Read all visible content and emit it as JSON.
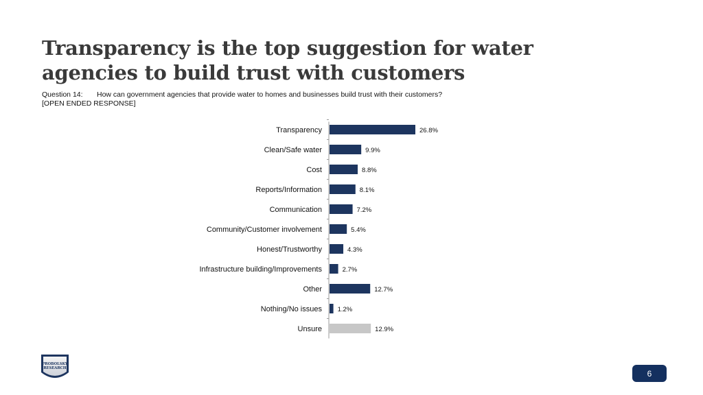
{
  "title": "Transparency is the top suggestion for water agencies to build trust with customers",
  "question": {
    "label": "Question 14:",
    "text": "How can government agencies that provide water to homes and businesses build trust with their customers?",
    "note": "[OPEN ENDED RESPONSE]"
  },
  "colors": {
    "primary_bar": "#1d355f",
    "unsure_bar": "#c7c7c7",
    "badge": "#14305f"
  },
  "logo": {
    "line1": "PROBOLSKY",
    "line2": "RESEARCH"
  },
  "page_number": "6",
  "chart_data": {
    "type": "bar",
    "orientation": "horizontal",
    "categories": [
      "Transparency",
      "Clean/Safe water",
      "Cost",
      "Reports/Information",
      "Communication",
      "Community/Customer involvement",
      "Honest/Trustworthy",
      "Infrastructure building/Improvements",
      "Other",
      "Nothing/No issues",
      "Unsure"
    ],
    "values": [
      26.8,
      9.9,
      8.8,
      8.1,
      7.2,
      5.4,
      4.3,
      2.7,
      12.7,
      1.2,
      12.9
    ],
    "value_labels": [
      "26.8%",
      "9.9%",
      "8.8%",
      "8.1%",
      "7.2%",
      "5.4%",
      "4.3%",
      "2.7%",
      "12.7%",
      "1.2%",
      "12.9%"
    ],
    "highlight_category": "Unsure",
    "xlim": [
      0,
      100
    ],
    "xaxis_visible": false,
    "grid": false,
    "legend": "none"
  }
}
